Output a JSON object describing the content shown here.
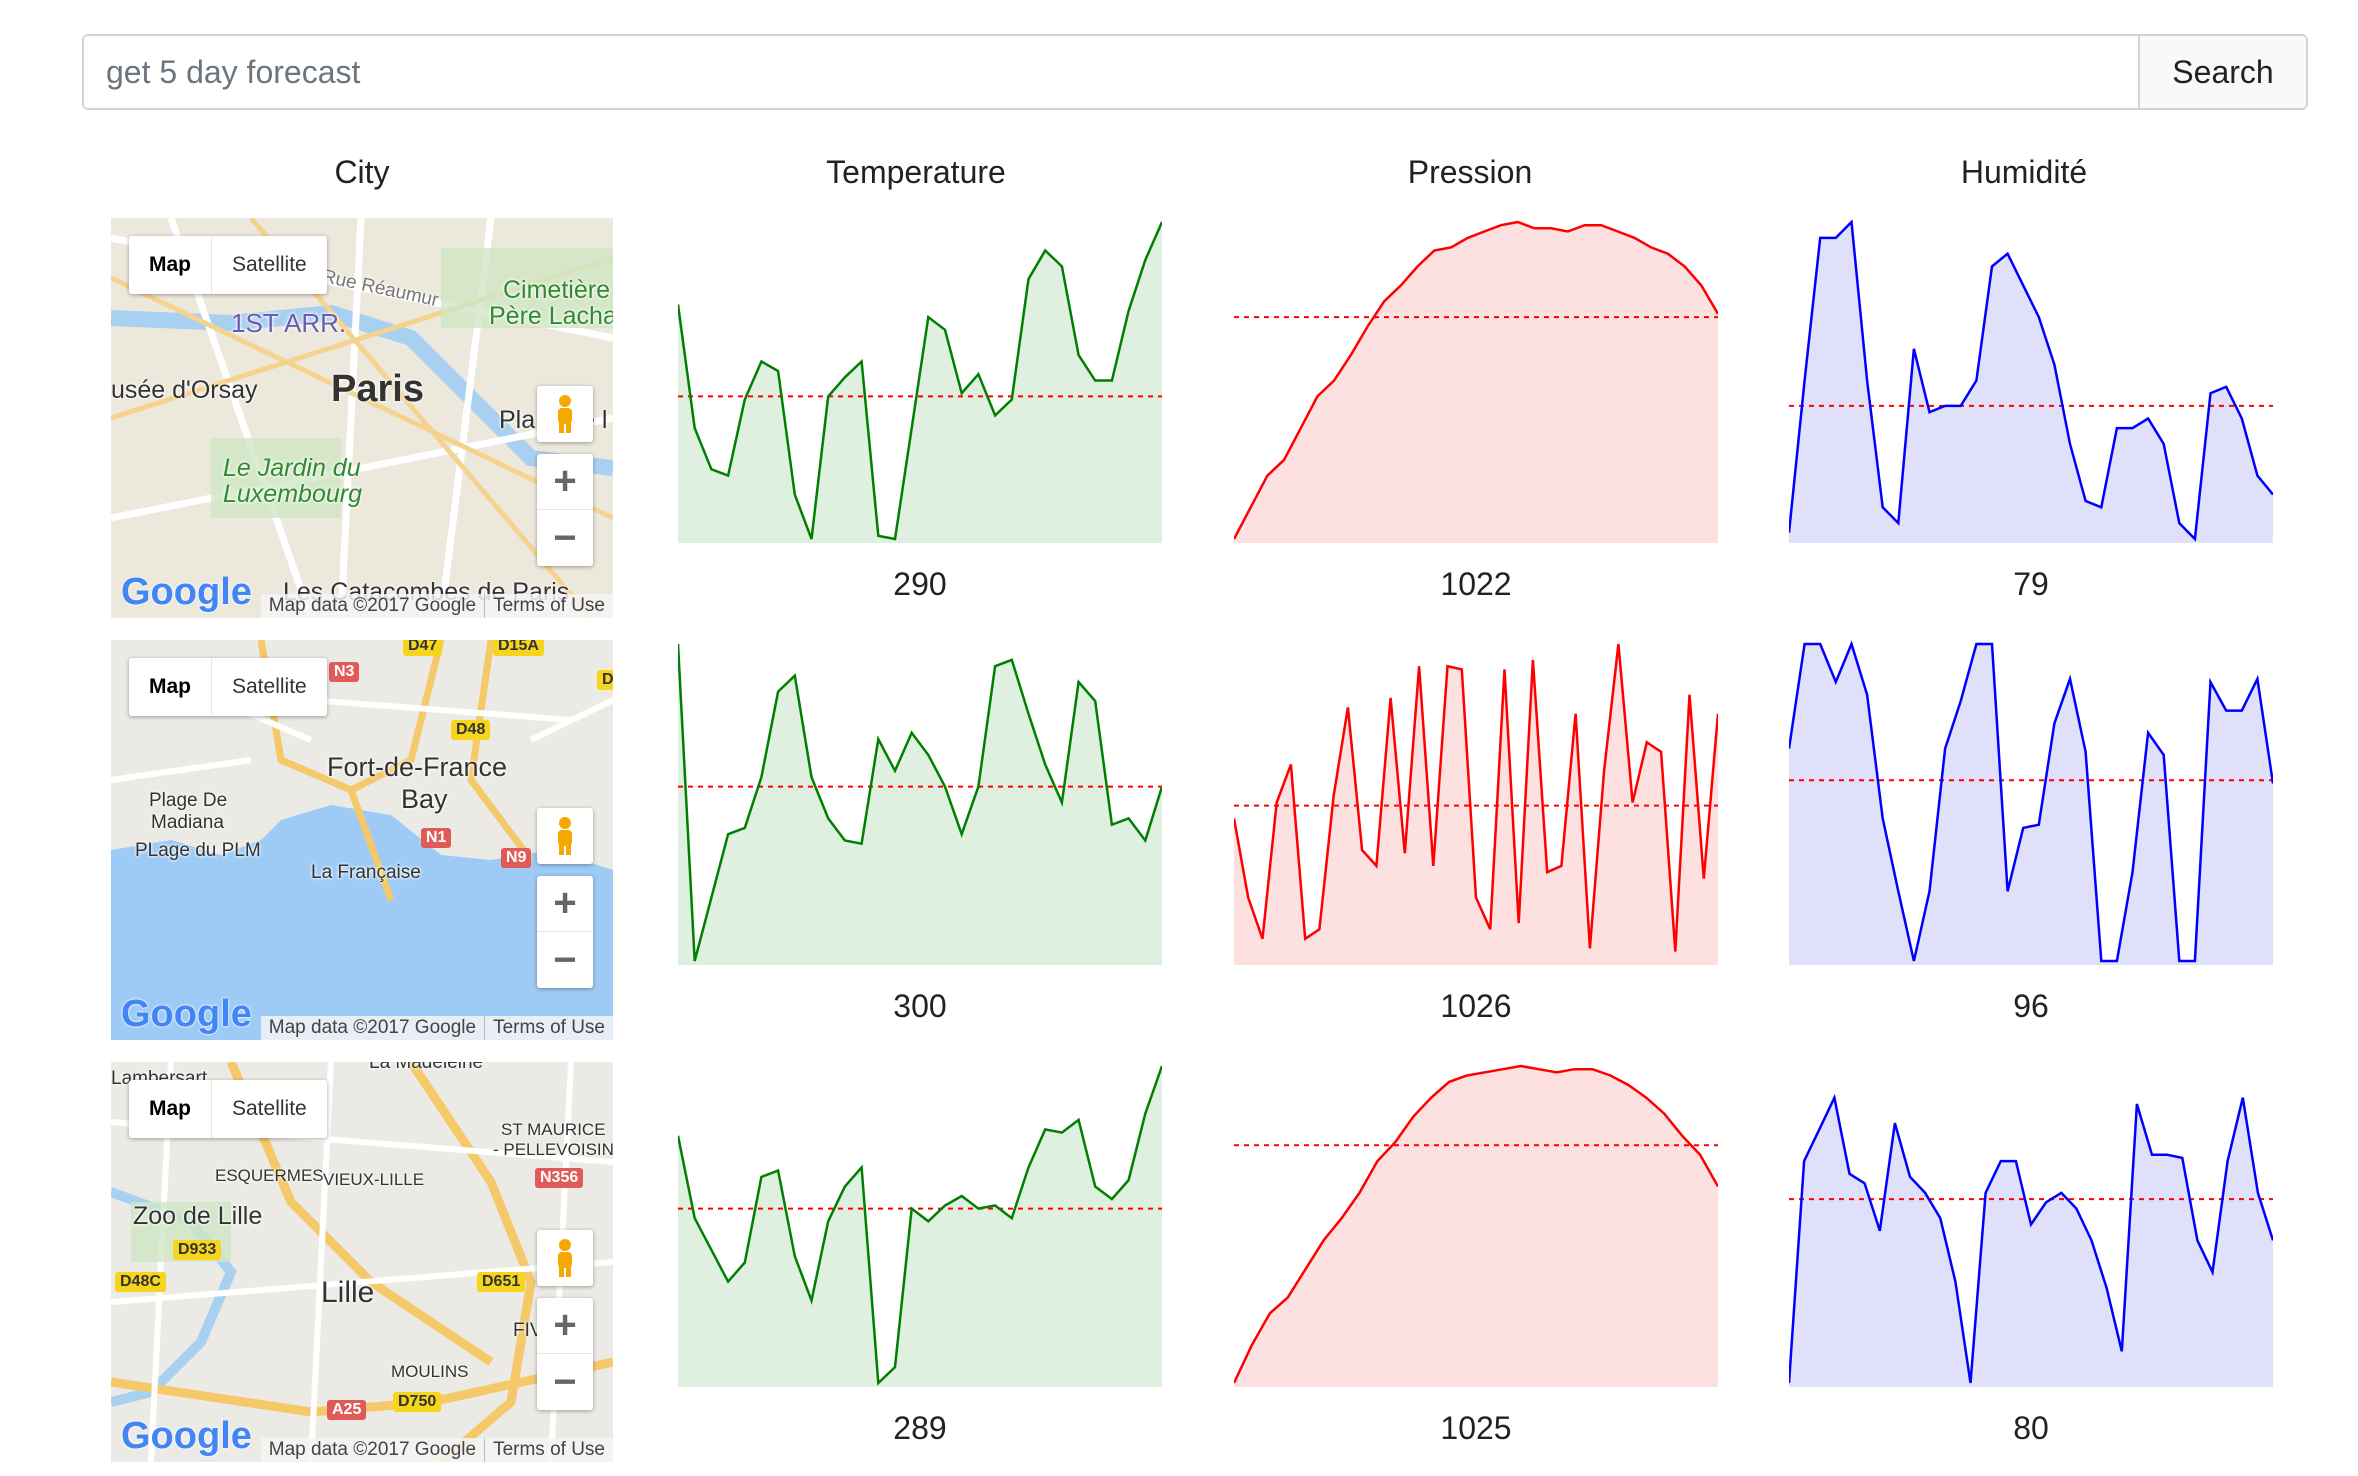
{
  "search": {
    "placeholder": "get 5 day forecast",
    "button_label": "Search"
  },
  "headers": {
    "city": "City",
    "temperature": "Temperature",
    "pressure": "Pression",
    "humidity": "Humidité"
  },
  "map_common": {
    "map_label": "Map",
    "satellite_label": "Satellite",
    "logo": "Google",
    "attribution": "Map data ©2017 Google",
    "terms": "Terms of Use",
    "zoom_in": "+",
    "zoom_out": "−"
  },
  "colors": {
    "temperature_line": "#008000",
    "temperature_fill": "#e0f0e0",
    "pressure_line": "#ff0000",
    "pressure_fill": "#fde0e0",
    "humidity_line": "#0000ff",
    "humidity_fill": "#e0e0fb",
    "average_line": "#ff0000"
  },
  "rows": [
    {
      "city": "Paris",
      "map_labels": [
        "1ST ARR.",
        "Cimetière",
        "Père Lacha",
        "Rue Réaumur",
        "usée d'Orsay",
        "Paris",
        "Pla",
        "e l",
        "Le Jardin du",
        "Luxembourg",
        "Les Catacombes de Paris"
      ],
      "route_tags": [],
      "temperature": {
        "value": "290",
        "series": [
          0.74,
          0.35,
          0.22,
          0.2,
          0.44,
          0.56,
          0.53,
          0.14,
          0.0,
          0.45,
          0.51,
          0.56,
          0.01,
          0.0,
          0.35,
          0.7,
          0.66,
          0.46,
          0.52,
          0.39,
          0.44,
          0.82,
          0.91,
          0.86,
          0.58,
          0.5,
          0.5,
          0.72,
          0.88,
          1.0
        ],
        "avg": 0.45
      },
      "pressure": {
        "value": "1022",
        "series": [
          0.0,
          0.1,
          0.2,
          0.25,
          0.35,
          0.45,
          0.5,
          0.58,
          0.67,
          0.75,
          0.8,
          0.86,
          0.91,
          0.92,
          0.95,
          0.97,
          0.99,
          1.0,
          0.98,
          0.98,
          0.97,
          0.99,
          0.99,
          0.97,
          0.95,
          0.92,
          0.9,
          0.86,
          0.8,
          0.71
        ],
        "avg": 0.7
      },
      "humidity": {
        "value": "79",
        "series": [
          0.02,
          0.5,
          0.95,
          0.95,
          1.0,
          0.5,
          0.1,
          0.05,
          0.6,
          0.4,
          0.42,
          0.42,
          0.5,
          0.86,
          0.9,
          0.8,
          0.7,
          0.55,
          0.3,
          0.12,
          0.1,
          0.35,
          0.35,
          0.38,
          0.3,
          0.05,
          0.0,
          0.46,
          0.48,
          0.38,
          0.2,
          0.14
        ],
        "avg": 0.42
      }
    },
    {
      "city": "Fort-de-France",
      "map_labels": [
        "Fort-de-France",
        "Bay",
        "Plage De",
        "Madiana",
        "PLage du PLM",
        "La Française"
      ],
      "route_tags": [
        "D47",
        "D15A",
        "N3",
        "D48",
        "N1",
        "N9",
        "D"
      ],
      "temperature": {
        "value": "300",
        "series": [
          1.0,
          0.0,
          0.2,
          0.4,
          0.42,
          0.58,
          0.85,
          0.9,
          0.58,
          0.45,
          0.38,
          0.37,
          0.7,
          0.6,
          0.72,
          0.65,
          0.55,
          0.4,
          0.55,
          0.93,
          0.95,
          0.78,
          0.62,
          0.5,
          0.88,
          0.82,
          0.43,
          0.45,
          0.38,
          0.55
        ],
        "avg": 0.55
      },
      "pressure": {
        "value": "1026",
        "series": [
          0.45,
          0.2,
          0.07,
          0.5,
          0.62,
          0.07,
          0.1,
          0.52,
          0.8,
          0.35,
          0.3,
          0.83,
          0.34,
          0.93,
          0.3,
          0.93,
          0.92,
          0.2,
          0.1,
          0.92,
          0.12,
          0.95,
          0.28,
          0.3,
          0.78,
          0.04,
          0.6,
          1.0,
          0.5,
          0.69,
          0.66,
          0.03,
          0.84,
          0.26,
          0.78
        ],
        "avg": 0.49
      },
      "humidity": {
        "value": "96",
        "series": [
          0.67,
          1.0,
          1.0,
          0.88,
          1.0,
          0.84,
          0.45,
          0.22,
          0.0,
          0.22,
          0.67,
          0.82,
          1.0,
          1.0,
          0.22,
          0.42,
          0.43,
          0.75,
          0.89,
          0.66,
          0.0,
          0.0,
          0.28,
          0.72,
          0.65,
          0.0,
          0.0,
          0.88,
          0.79,
          0.79,
          0.89,
          0.56
        ],
        "avg": 0.57
      }
    },
    {
      "city": "Lille",
      "map_labels": [
        "Lambersart",
        "La Madeleine",
        "ST MAURICE",
        "- PELLEVOISIN",
        "ESQUERMES",
        "VIEUX-LILLE",
        "Zoo de Lille",
        "Lille",
        "FIV",
        "MOULINS"
      ],
      "route_tags": [
        "N356",
        "D933",
        "D48C",
        "D651",
        "A25",
        "D750"
      ],
      "temperature": {
        "value": "289",
        "series": [
          0.78,
          0.52,
          0.42,
          0.32,
          0.38,
          0.65,
          0.67,
          0.4,
          0.26,
          0.51,
          0.62,
          0.68,
          0.0,
          0.05,
          0.55,
          0.51,
          0.56,
          0.59,
          0.55,
          0.56,
          0.52,
          0.68,
          0.8,
          0.79,
          0.83,
          0.62,
          0.58,
          0.64,
          0.85,
          1.0
        ],
        "avg": 0.55
      },
      "pressure": {
        "value": "1025",
        "series": [
          0.0,
          0.12,
          0.22,
          0.27,
          0.36,
          0.45,
          0.52,
          0.6,
          0.7,
          0.76,
          0.84,
          0.9,
          0.95,
          0.97,
          0.98,
          0.99,
          1.0,
          0.99,
          0.98,
          0.99,
          0.99,
          0.97,
          0.94,
          0.9,
          0.85,
          0.78,
          0.72,
          0.62
        ],
        "avg": 0.75
      },
      "humidity": {
        "value": "80",
        "series": [
          0.0,
          0.7,
          0.8,
          0.9,
          0.66,
          0.63,
          0.48,
          0.82,
          0.65,
          0.6,
          0.52,
          0.32,
          0.0,
          0.6,
          0.7,
          0.7,
          0.5,
          0.57,
          0.6,
          0.55,
          0.45,
          0.3,
          0.1,
          0.88,
          0.72,
          0.72,
          0.71,
          0.45,
          0.35,
          0.7,
          0.9,
          0.6,
          0.45
        ],
        "avg": 0.58
      }
    }
  ]
}
